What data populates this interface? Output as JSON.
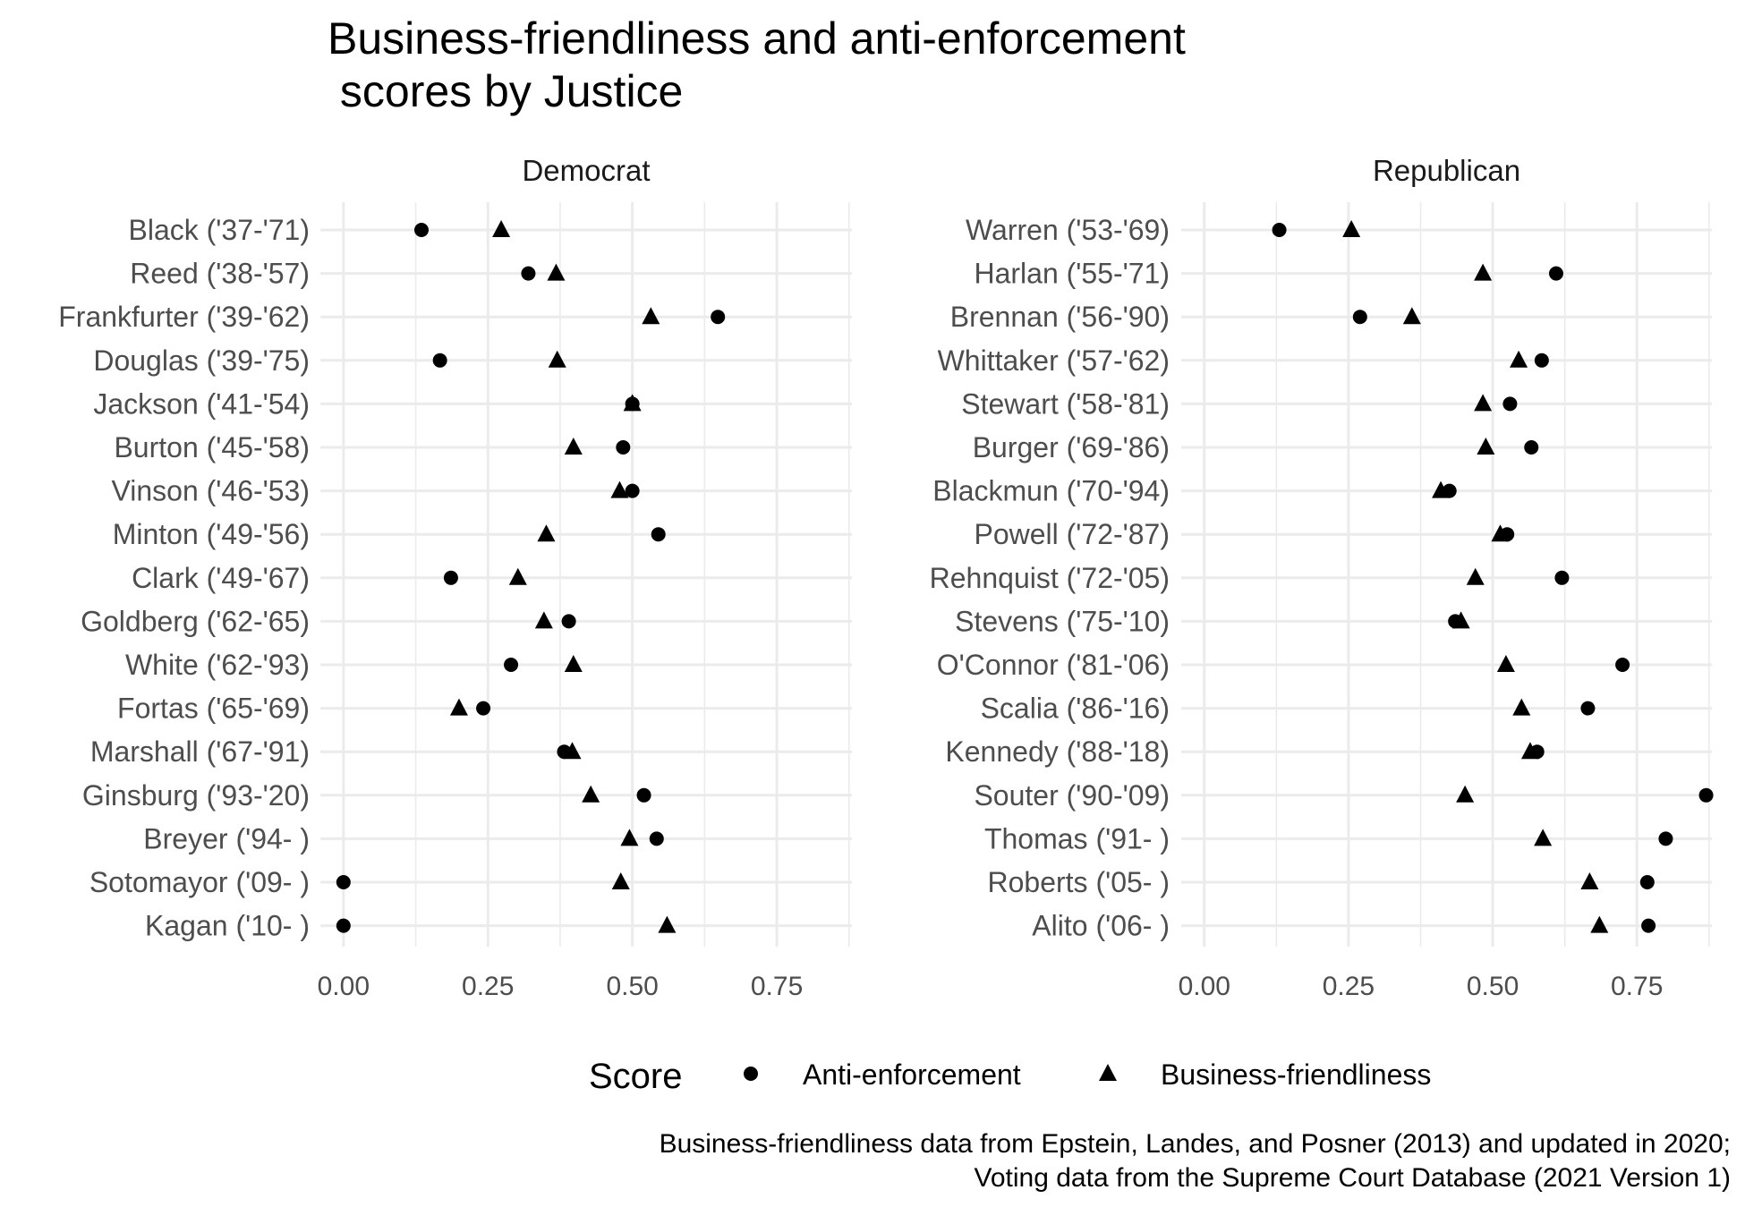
{
  "title_lines": [
    "Business-friendliness and anti-enforcement",
    " scores by Justice"
  ],
  "caption_lines": [
    "Business-friendliness data from Epstein, Landes, and Posner (2013) and updated in 2020;",
    "Voting data from the Supreme Court Database (2021 Version 1)"
  ],
  "legend": {
    "title": "Score",
    "items": [
      {
        "label": "Anti-enforcement",
        "shape": "circle"
      },
      {
        "label": "Business-friendliness",
        "shape": "triangle"
      }
    ]
  },
  "chart_data": [
    {
      "type": "scatter",
      "panel": "Democrat",
      "xlim": [
        -0.04,
        0.88
      ],
      "xticks": [
        0.0,
        0.25,
        0.5,
        0.75
      ],
      "xtick_labels": [
        "0.00",
        "0.25",
        "0.50",
        "0.75"
      ],
      "grid": true,
      "categories": [
        "Black ('37-'71)",
        "Reed ('38-'57)",
        "Frankfurter ('39-'62)",
        "Douglas ('39-'75)",
        "Jackson ('41-'54)",
        "Burton ('45-'58)",
        "Vinson ('46-'53)",
        "Minton ('49-'56)",
        "Clark ('49-'67)",
        "Goldberg ('62-'65)",
        "White ('62-'93)",
        "Fortas ('65-'69)",
        "Marshall ('67-'91)",
        "Ginsburg ('93-'20)",
        "Breyer ('94- )",
        "Sotomayor ('09- )",
        "Kagan ('10- )"
      ],
      "series": [
        {
          "name": "Anti-enforcement",
          "shape": "circle",
          "values": [
            0.135,
            0.32,
            0.648,
            0.167,
            0.5,
            0.484,
            0.5,
            0.545,
            0.186,
            0.39,
            0.29,
            0.242,
            0.382,
            0.52,
            0.542,
            0.0,
            0.0
          ]
        },
        {
          "name": "Business-friendliness",
          "shape": "triangle",
          "values": [
            0.273,
            0.368,
            0.532,
            0.37,
            0.5,
            0.398,
            0.478,
            0.351,
            0.302,
            0.347,
            0.398,
            0.2,
            0.396,
            0.428,
            0.495,
            0.48,
            0.56
          ]
        }
      ]
    },
    {
      "type": "scatter",
      "panel": "Republican",
      "xlim": [
        -0.04,
        0.88
      ],
      "xticks": [
        0.0,
        0.25,
        0.5,
        0.75
      ],
      "xtick_labels": [
        "0.00",
        "0.25",
        "0.50",
        "0.75"
      ],
      "grid": true,
      "categories": [
        "Warren ('53-'69)",
        "Harlan ('55-'71)",
        "Brennan ('56-'90)",
        "Whittaker ('57-'62)",
        "Stewart ('58-'81)",
        "Burger ('69-'86)",
        "Blackmun ('70-'94)",
        "Powell ('72-'87)",
        "Rehnquist ('72-'05)",
        "Stevens ('75-'10)",
        "O'Connor ('81-'06)",
        "Scalia ('86-'16)",
        "Kennedy ('88-'18)",
        "Souter ('90-'09)",
        "Thomas ('91- )",
        "Roberts ('05- )",
        "Alito ('06- )"
      ],
      "series": [
        {
          "name": "Anti-enforcement",
          "shape": "circle",
          "values": [
            0.13,
            0.61,
            0.27,
            0.585,
            0.53,
            0.567,
            0.425,
            0.525,
            0.62,
            0.435,
            0.725,
            0.665,
            0.577,
            0.87,
            0.8,
            0.768,
            0.77
          ]
        },
        {
          "name": "Business-friendliness",
          "shape": "triangle",
          "values": [
            0.255,
            0.483,
            0.36,
            0.545,
            0.483,
            0.488,
            0.41,
            0.513,
            0.47,
            0.445,
            0.523,
            0.55,
            0.565,
            0.452,
            0.587,
            0.668,
            0.685
          ]
        }
      ]
    }
  ]
}
